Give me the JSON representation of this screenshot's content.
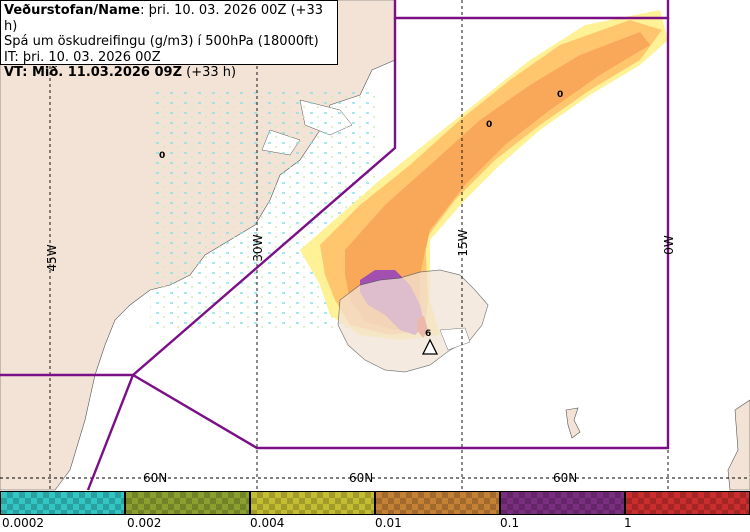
{
  "header": {
    "line1_label": "Veðurstofan/Name",
    "line1_value": ": þri. 10. 03. 2026 00Z (+33 h)",
    "line2": "Spá um öskudreifingu (g/m3) í 500hPa (18000ft)",
    "line3": "IT: þri. 10. 03. 2026 00Z",
    "line4": "VT: Mið. 11.03.2026 09Z",
    "line4_suffix": " (+33 h)"
  },
  "map": {
    "longitude_labels": [
      "45W",
      "30W",
      "15W",
      "0W"
    ],
    "latitude_labels": [
      "60N",
      "60N",
      "60N"
    ],
    "contour_labels": [
      "0",
      "0",
      "0",
      "6"
    ],
    "colors": {
      "land": "#f2e3d6",
      "ocean": "#ffffff",
      "boundary": "#7b0f86",
      "ash_yellow": "#ffef8a",
      "ash_orange_light": "#ffc36b",
      "ash_orange": "#f9a85a",
      "ash_purple": "#a34fb0",
      "ash_red": "#e3352f",
      "trace_cyan": "#54d8d8"
    }
  },
  "legend": {
    "colors": [
      "#33c4c4",
      "#8a9f30",
      "#c4bd33",
      "#c48035",
      "#7a2e7f",
      "#c92d2d"
    ],
    "tick_labels": [
      "0.0002",
      "0.002",
      "0.004",
      "0.01",
      "0.1",
      "1"
    ]
  }
}
